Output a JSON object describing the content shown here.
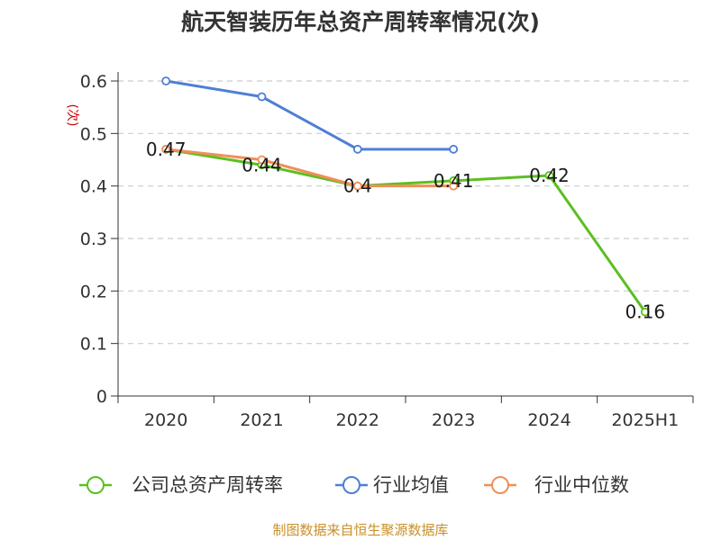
{
  "chart_data": {
    "type": "line",
    "title": "航天智装历年总资产周转率情况(次)",
    "ylabel": "(次)",
    "categories": [
      "2020",
      "2021",
      "2022",
      "2023",
      "2024",
      "2025H1"
    ],
    "ylim": [
      0,
      0.6
    ],
    "yticks": [
      "0",
      "0.1",
      "0.2",
      "0.3",
      "0.4",
      "0.5",
      "0.6"
    ],
    "grid": true,
    "legend_position": "bottom",
    "series": [
      {
        "name": "公司总资产周转率",
        "color": "#5bbf21",
        "values": [
          0.47,
          0.44,
          0.4,
          0.41,
          0.42,
          0.16
        ]
      },
      {
        "name": "行业均值",
        "color": "#4e7fd6",
        "values": [
          0.6,
          0.57,
          0.47,
          0.47,
          null,
          null
        ]
      },
      {
        "name": "行业中位数",
        "color": "#f28e57",
        "values": [
          0.47,
          0.45,
          0.4,
          0.4,
          null,
          null
        ]
      }
    ],
    "data_labels": [
      "0.47",
      "0.44",
      "0.4",
      "0.41",
      "0.42",
      "0.16"
    ],
    "source": "制图数据来自恒生聚源数据库"
  }
}
